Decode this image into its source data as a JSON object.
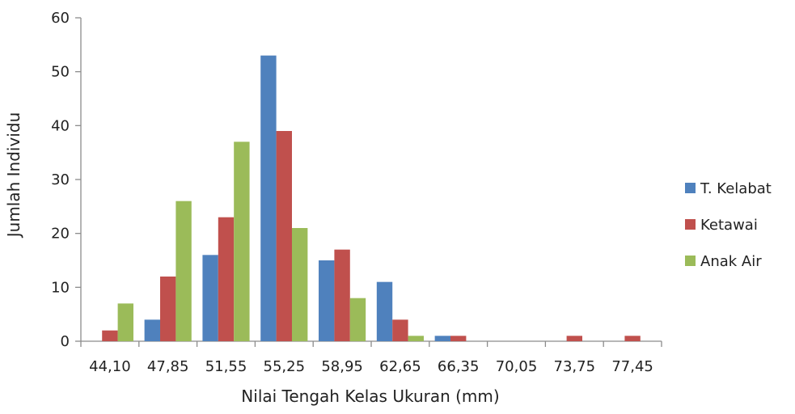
{
  "chart_data": {
    "type": "bar",
    "title": "",
    "xlabel": "Nilai Tengah Kelas Ukuran (mm)",
    "ylabel": "Jumlah Individu",
    "categories": [
      "44,10",
      "47,85",
      "51,55",
      "55,25",
      "58,95",
      "62,65",
      "66,35",
      "70,05",
      "73,75",
      "77,45"
    ],
    "yticks": [
      "0",
      "10",
      "20",
      "30",
      "40",
      "50",
      "60"
    ],
    "ylim": [
      0,
      60
    ],
    "grid": false,
    "legend_position": "right",
    "series": [
      {
        "name": "T. Kelabat",
        "color": "#4f81bd",
        "values": [
          0,
          4,
          16,
          53,
          15,
          11,
          1,
          0,
          0,
          0
        ]
      },
      {
        "name": "Ketawai",
        "color": "#c0504d",
        "values": [
          2,
          12,
          23,
          39,
          17,
          4,
          1,
          0,
          1,
          1
        ]
      },
      {
        "name": "Anak Air",
        "color": "#9bbb59",
        "values": [
          7,
          26,
          37,
          21,
          8,
          1,
          0,
          0,
          0,
          0
        ]
      }
    ]
  }
}
